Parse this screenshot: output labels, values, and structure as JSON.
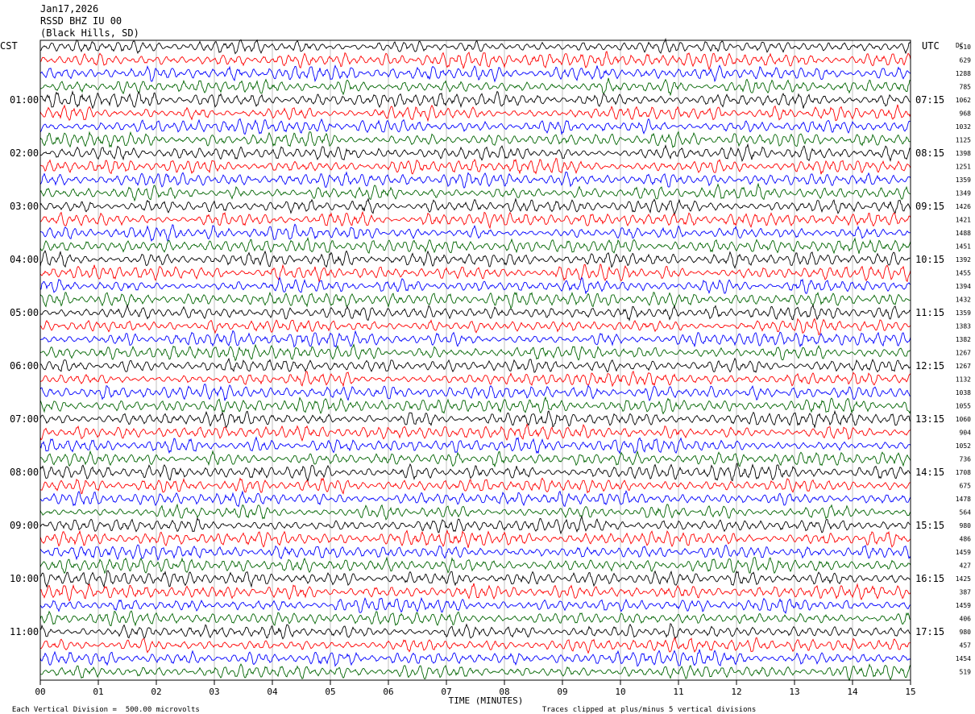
{
  "header": {
    "date": "Jan17,2026",
    "station": "RSSD BHZ IU 00",
    "location": "(Black Hills, SD)"
  },
  "chart_data": {
    "type": "line",
    "title": "RSSD BHZ IU 00",
    "left_axis_label": "CST",
    "right_axis_label": "UTC",
    "dc_label": "DC",
    "xlabel": "TIME (MINUTES)",
    "x_ticks": [
      "00",
      "01",
      "02",
      "03",
      "04",
      "05",
      "06",
      "07",
      "08",
      "09",
      "10",
      "11",
      "12",
      "13",
      "14",
      "15"
    ],
    "xlim": [
      0,
      15
    ],
    "trace_colors": [
      "#000000",
      "#ff0000",
      "#0000ff",
      "#006400"
    ],
    "left_time_labels": [
      "01:00",
      "02:00",
      "03:00",
      "04:00",
      "05:00",
      "06:00",
      "07:00",
      "08:00",
      "09:00",
      "10:00",
      "11:00"
    ],
    "right_time_labels": [
      "07:15",
      "08:15",
      "09:15",
      "10:15",
      "11:15",
      "12:15",
      "13:15",
      "14:15",
      "15:15",
      "16:15",
      "17:15"
    ],
    "dc_offsets": [
      510,
      629,
      1288,
      785,
      1062,
      968,
      1032,
      1125,
      1398,
      1251,
      1359,
      1349,
      1426,
      1421,
      1488,
      1451,
      1392,
      1455,
      1394,
      1432,
      1359,
      1383,
      1382,
      1267,
      1267,
      1132,
      1038,
      1055,
      1060,
      904,
      1052,
      736,
      1708,
      675,
      1478,
      564,
      980,
      486,
      1459,
      427,
      1425,
      387,
      1459,
      406,
      980,
      457,
      1454,
      519
    ],
    "scale_note": "Each Vertical Division =  500.00 microvolts",
    "clip_note": "Traces clipped at plus/minus 5 vertical divisions"
  }
}
